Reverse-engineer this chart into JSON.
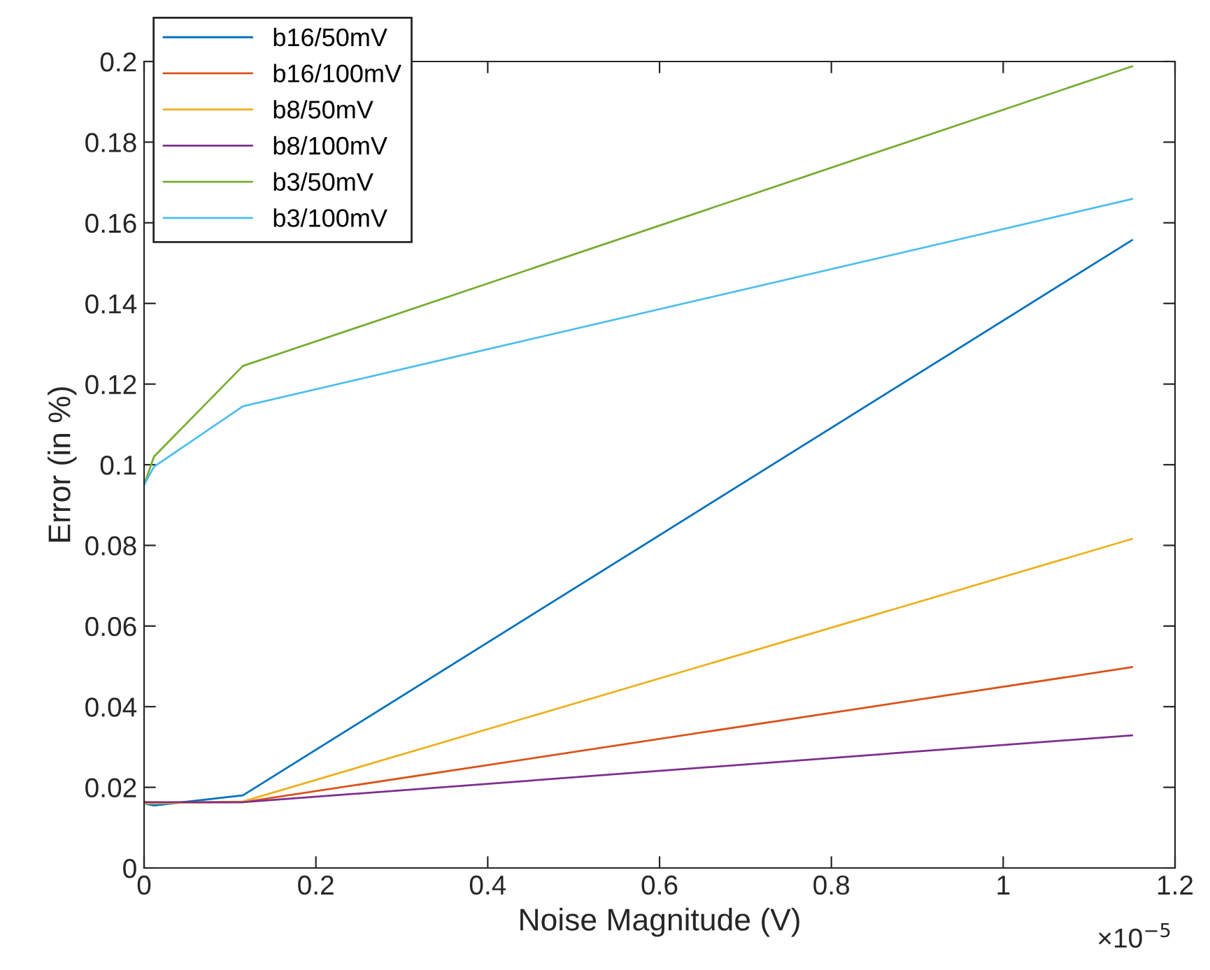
{
  "chart_data": {
    "type": "line",
    "xlabel": "Noise Magnitude (V)",
    "ylabel": "Error (in %)",
    "x": [
      0,
      0.0115,
      0.115,
      1.15
    ],
    "series": [
      {
        "name": "b16/50mV",
        "color": "#0072bd",
        "values": [
          0.016,
          0.0155,
          0.018,
          0.1557
        ]
      },
      {
        "name": "b16/100mV",
        "color": "#d95319",
        "values": [
          0.0163,
          0.0162,
          0.0163,
          0.0498
        ]
      },
      {
        "name": "b8/50mV",
        "color": "#edb120",
        "values": [
          0.016,
          0.016,
          0.0165,
          0.0816
        ]
      },
      {
        "name": "b8/100mV",
        "color": "#7e2f8e",
        "values": [
          0.0163,
          0.0163,
          0.0163,
          0.0329
        ]
      },
      {
        "name": "b3/50mV",
        "color": "#77ac30",
        "values": [
          0.095,
          0.102,
          0.1245,
          0.1988
        ]
      },
      {
        "name": "b3/100mV",
        "color": "#4dbeee",
        "values": [
          0.095,
          0.0995,
          0.1145,
          0.1659
        ]
      }
    ],
    "xlim": [
      0,
      1.2
    ],
    "xticks": [
      0,
      0.2,
      0.4,
      0.6,
      0.8,
      1,
      1.2
    ],
    "ylim": [
      0,
      0.2
    ],
    "yticks": [
      0,
      0.02,
      0.04,
      0.06,
      0.08,
      0.1,
      0.12,
      0.14,
      0.16,
      0.18,
      0.2
    ],
    "annotations": [
      "×10$^{−5}$"
    ],
    "legend": "top left",
    "grid": false,
    "marker": "none",
    "line_style": "solid"
  }
}
